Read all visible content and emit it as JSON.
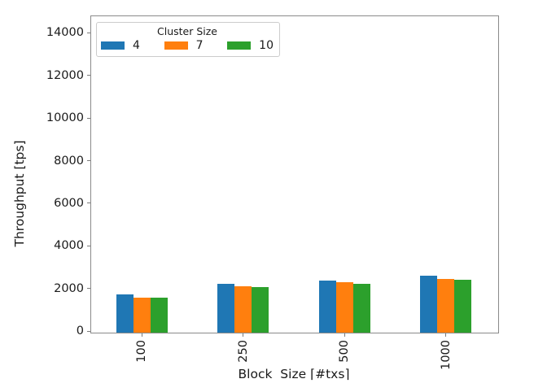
{
  "chart_data": {
    "type": "bar",
    "title": "",
    "xlabel": "Block  Size ⌈#txs⌉",
    "ylabel": "Throughput [tps]",
    "categories": [
      "100",
      "250",
      "500",
      "1000"
    ],
    "series": [
      {
        "name": "4",
        "color": "#1f77b4",
        "values": [
          1800,
          2290,
          2440,
          2690
        ]
      },
      {
        "name": "7",
        "color": "#ff7f0e",
        "values": [
          1650,
          2180,
          2360,
          2520
        ]
      },
      {
        "name": "10",
        "color": "#2ca02c",
        "values": [
          1650,
          2150,
          2310,
          2470
        ]
      }
    ],
    "yticks": [
      0,
      2000,
      4000,
      6000,
      8000,
      10000,
      12000,
      14000
    ],
    "ylim": [
      0,
      14780
    ],
    "grid": false,
    "legend": {
      "title": "Cluster Size",
      "position": "upper-left"
    }
  },
  "colors": {
    "spine": "#8a8a8a",
    "tick": "#7a7a7a",
    "text": "#1a1a1a",
    "legend_border": "#cccccc",
    "background": "#ffffff"
  }
}
